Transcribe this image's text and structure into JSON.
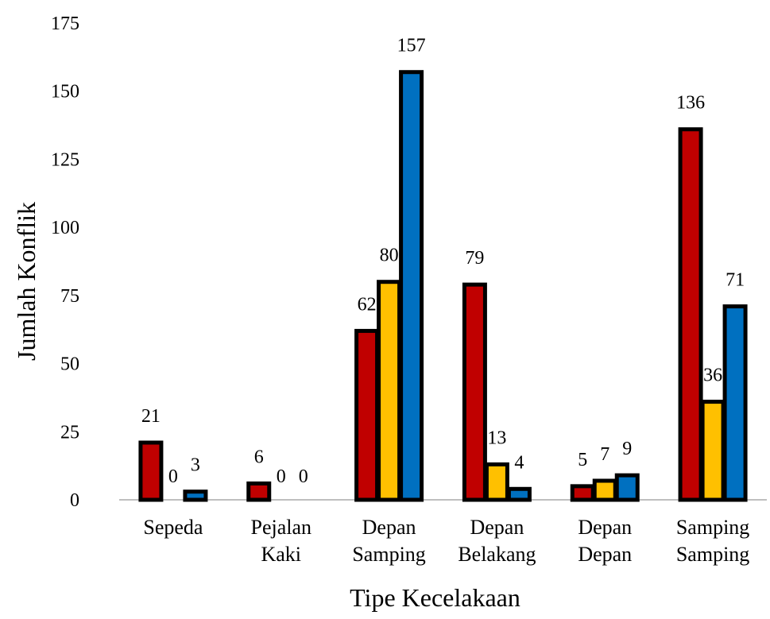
{
  "chart_data": {
    "type": "bar",
    "title": "",
    "xlabel": "Tipe Kecelakaan",
    "ylabel": "Jumlah Konflik",
    "ylim": [
      0,
      175
    ],
    "yticks": [
      "0",
      "25",
      "50",
      "75",
      "100",
      "125",
      "150",
      "175"
    ],
    "grid": false,
    "legend": "none",
    "categories": [
      [
        "Sepeda"
      ],
      [
        "Pejalan",
        "Kaki"
      ],
      [
        "Depan",
        "Samping"
      ],
      [
        "Depan",
        "Belakang"
      ],
      [
        "Depan",
        "Depan"
      ],
      [
        "Samping",
        "Samping"
      ]
    ],
    "series": [
      {
        "color": "#C00000",
        "values": [
          21,
          6,
          62,
          79,
          5,
          136
        ]
      },
      {
        "color": "#FFC000",
        "values": [
          0,
          0,
          80,
          13,
          7,
          36
        ]
      },
      {
        "color": "#0070C0",
        "values": [
          3,
          0,
          157,
          4,
          9,
          71
        ]
      }
    ]
  }
}
